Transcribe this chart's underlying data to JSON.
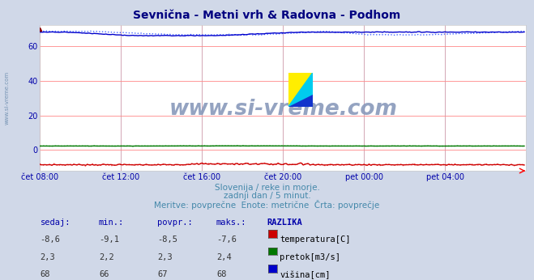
{
  "title": "Sevnična - Metni vrh & Radovna - Podhom",
  "title_color": "#000080",
  "bg_color": "#d0d8e8",
  "plot_bg_color": "#ffffff",
  "grid_color_h": "#ff9999",
  "grid_color_v": "#cc88aa",
  "watermark": "www.si-vreme.com",
  "subtitle1": "Slovenija / reke in morje.",
  "subtitle2": "zadnji dan / 5 minut.",
  "subtitle3": "Meritve: povprečne  Enote: metrične  Črta: povprečje",
  "subtitle_color": "#4488aa",
  "xlabel_color": "#0000aa",
  "ylabel_color": "#0000aa",
  "xtick_labels": [
    "čet 08:00",
    "čet 12:00",
    "čet 16:00",
    "čet 20:00",
    "pet 00:00",
    "pet 04:00"
  ],
  "xtick_positions": [
    0,
    48,
    96,
    144,
    192,
    240
  ],
  "ytick_labels": [
    "0",
    "20",
    "40",
    "60"
  ],
  "ytick_positions": [
    0,
    20,
    40,
    60
  ],
  "ylim": [
    -12,
    72
  ],
  "xlim": [
    0,
    288
  ],
  "n_points": 288,
  "temp_color": "#cc0000",
  "temp_color2": "#ff5555",
  "flow_color": "#007700",
  "flow_color2": "#33bb33",
  "height_color": "#0000cc",
  "height_color2": "#4466ff",
  "temp_sedaj": -8.6,
  "temp_min": -9.1,
  "temp_povpr": -8.5,
  "temp_maks": -7.6,
  "flow_sedaj": 2.3,
  "flow_min": 2.2,
  "flow_povpr": 2.3,
  "flow_maks": 2.4,
  "height_sedaj": 68,
  "height_min": 66,
  "height_povpr": 67,
  "height_maks": 68,
  "table_header_color": "#0000aa",
  "legend_color": "#000000",
  "watermark_color": "#8899bb",
  "side_watermark_color": "#6688aa"
}
